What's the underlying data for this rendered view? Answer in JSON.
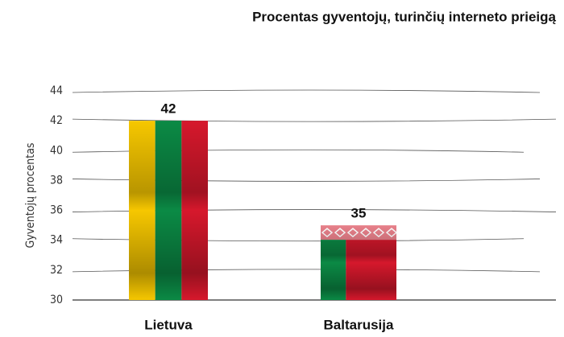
{
  "chart_data": {
    "type": "bar",
    "title": "Procentas gyventojų, turinčių interneto prieigą",
    "y_label": "Gyventojų procentas",
    "categories": [
      "Lietuva",
      "Baltarusija"
    ],
    "values": [
      42,
      35
    ],
    "colors": [
      [
        "#f6c700",
        "#0b8a45",
        "#d6182c"
      ],
      [
        "#0b8a45",
        "#d6182c"
      ]
    ],
    "ylim": [
      30,
      44
    ],
    "yticks": [
      30,
      32,
      34,
      36,
      38,
      40,
      42,
      44
    ],
    "grid": true
  }
}
